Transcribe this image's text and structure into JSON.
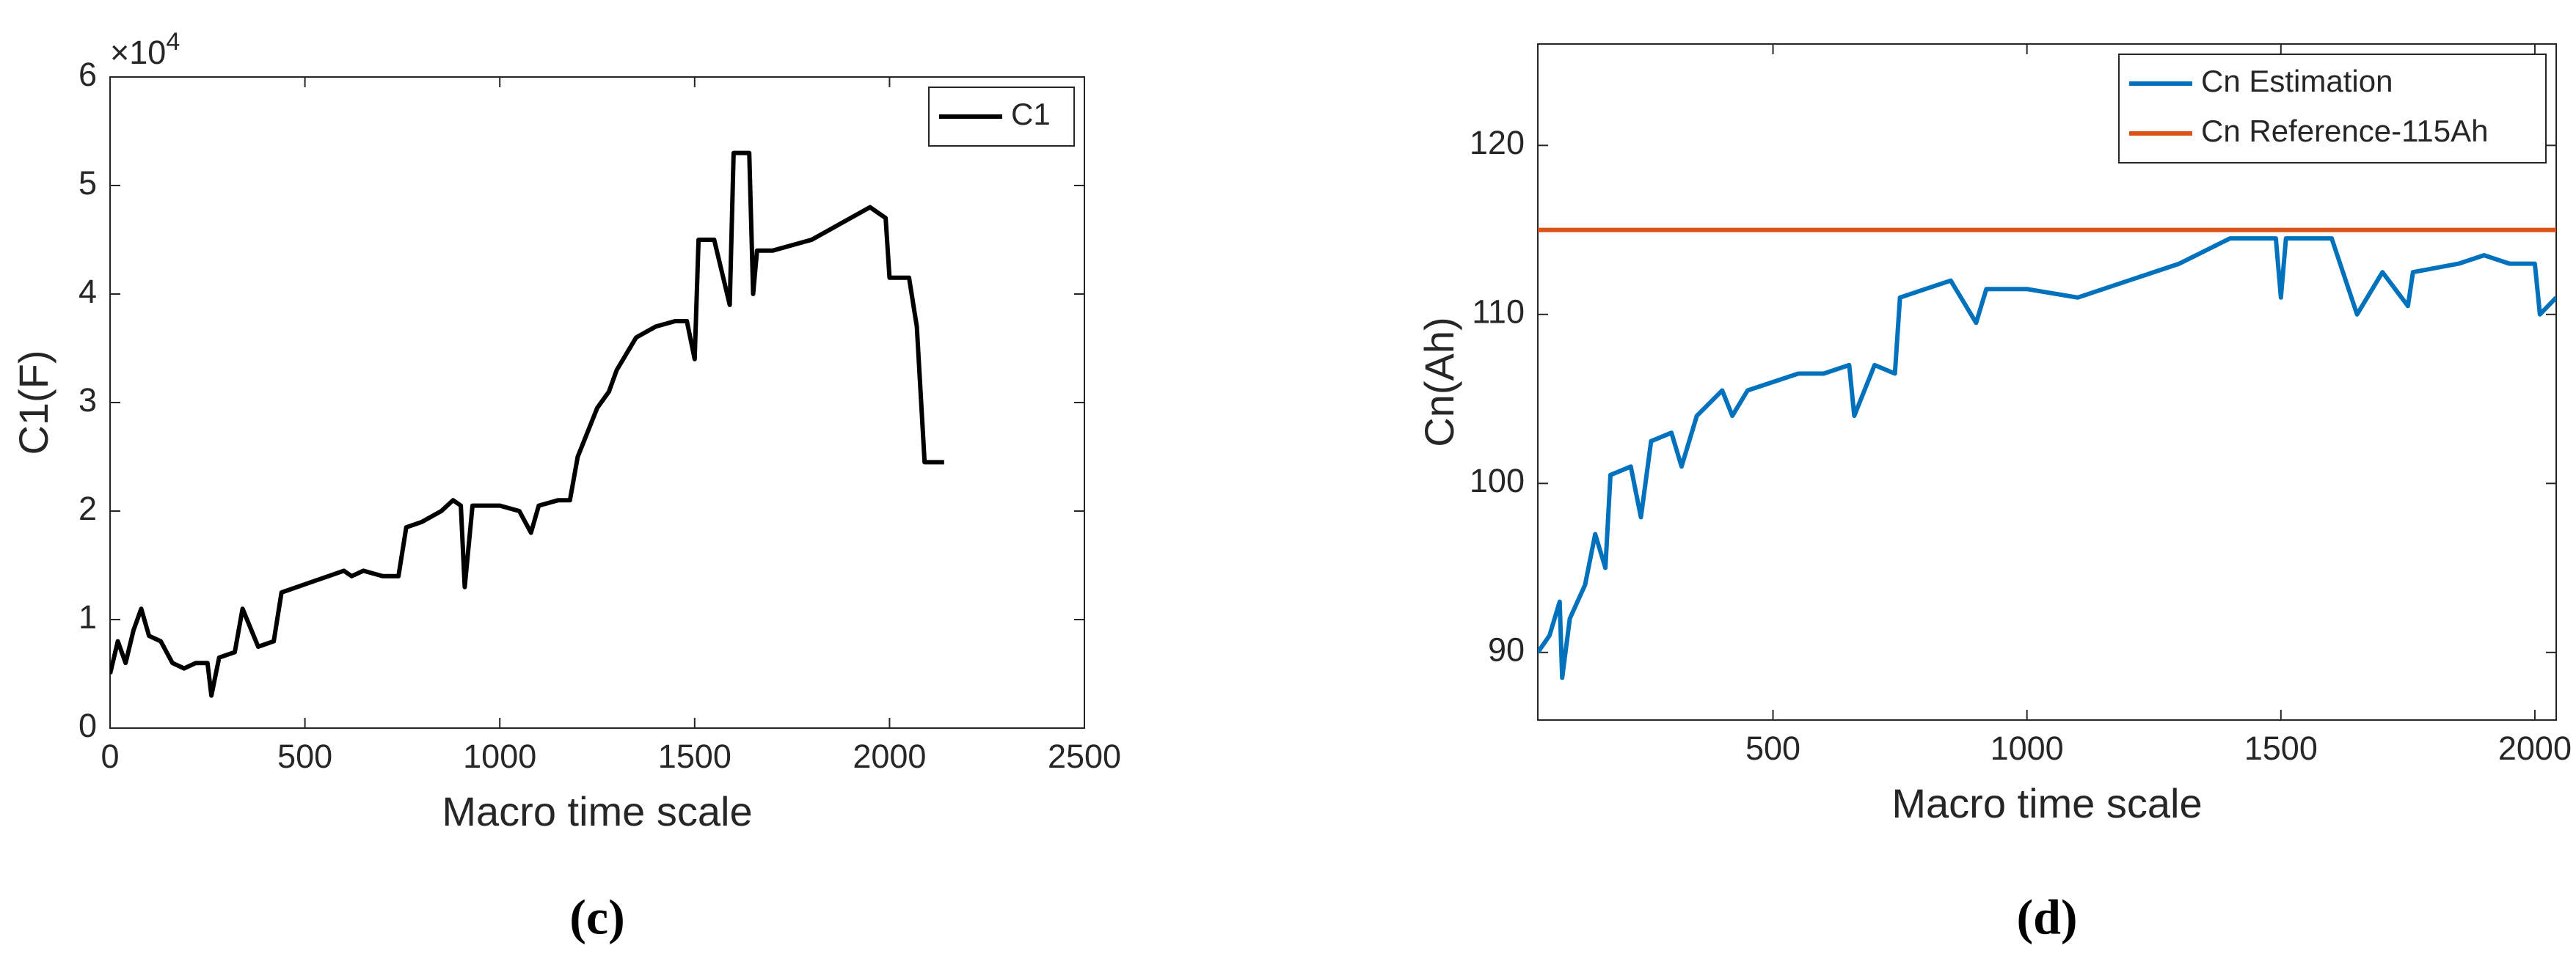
{
  "chart_data": [
    {
      "type": "line",
      "y_multiplier": "×10",
      "y_multiplier_exponent": "4",
      "xlabel": "Macro time scale",
      "ylabel": "C1(F)",
      "panel_label": "(c)",
      "xlim": [
        0,
        2500
      ],
      "ylim": [
        0,
        6
      ],
      "xticks": [
        0,
        500,
        1000,
        1500,
        2000,
        2500
      ],
      "yticks": [
        0,
        1,
        2,
        3,
        4,
        5,
        6
      ],
      "legend": "upper right",
      "series": [
        {
          "name": "C1",
          "color": "#000000",
          "x": [
            0,
            20,
            40,
            60,
            80,
            100,
            130,
            160,
            190,
            220,
            250,
            260,
            280,
            320,
            340,
            380,
            420,
            440,
            480,
            520,
            560,
            600,
            620,
            650,
            700,
            740,
            760,
            800,
            850,
            880,
            900,
            910,
            930,
            980,
            1000,
            1050,
            1080,
            1100,
            1150,
            1180,
            1200,
            1250,
            1280,
            1300,
            1350,
            1400,
            1450,
            1480,
            1500,
            1510,
            1550,
            1590,
            1600,
            1640,
            1650,
            1660,
            1700,
            1750,
            1800,
            1850,
            1900,
            1950,
            1990,
            2000,
            2050,
            2070,
            2090,
            2100,
            2140
          ],
          "values": [
            0.5,
            0.8,
            0.6,
            0.9,
            1.1,
            0.85,
            0.8,
            0.6,
            0.55,
            0.6,
            0.6,
            0.3,
            0.65,
            0.7,
            1.1,
            0.75,
            0.8,
            1.25,
            1.3,
            1.35,
            1.4,
            1.45,
            1.4,
            1.45,
            1.4,
            1.4,
            1.85,
            1.9,
            2.0,
            2.1,
            2.05,
            1.3,
            2.05,
            2.05,
            2.05,
            2.0,
            1.8,
            2.05,
            2.1,
            2.1,
            2.5,
            2.95,
            3.1,
            3.3,
            3.6,
            3.7,
            3.75,
            3.75,
            3.4,
            4.5,
            4.5,
            3.9,
            5.3,
            5.3,
            4.0,
            4.4,
            4.4,
            4.45,
            4.5,
            4.6,
            4.7,
            4.8,
            4.7,
            4.15,
            4.15,
            3.7,
            2.45,
            2.45,
            2.45
          ]
        }
      ]
    },
    {
      "type": "line",
      "xlabel": "Macro time scale",
      "ylabel": "Cn(Ah)",
      "panel_label": "(d)",
      "xlim": [
        37,
        2042
      ],
      "ylim": [
        86,
        126
      ],
      "xticks": [
        500,
        1000,
        1500,
        2000
      ],
      "yticks": [
        90,
        100,
        110,
        120
      ],
      "legend": "upper right",
      "series": [
        {
          "name": "Cn Estimation",
          "color": "#0072bd",
          "x": [
            37,
            60,
            80,
            85,
            100,
            130,
            150,
            170,
            180,
            220,
            240,
            260,
            300,
            320,
            350,
            400,
            420,
            450,
            500,
            550,
            600,
            650,
            660,
            700,
            740,
            750,
            800,
            850,
            900,
            920,
            1000,
            1100,
            1200,
            1300,
            1400,
            1490,
            1500,
            1510,
            1550,
            1600,
            1650,
            1700,
            1750,
            1760,
            1850,
            1900,
            1950,
            2000,
            2010,
            2042
          ],
          "values": [
            90,
            91,
            93,
            88.5,
            92,
            94,
            97,
            95,
            100.5,
            101,
            98,
            102.5,
            103,
            101,
            104,
            105.5,
            104,
            105.5,
            106,
            106.5,
            106.5,
            107,
            104,
            107,
            106.5,
            111,
            111.5,
            112,
            109.5,
            111.5,
            111.5,
            111,
            112,
            113,
            114.5,
            114.5,
            111,
            114.5,
            114.5,
            114.5,
            110,
            112.5,
            110.5,
            112.5,
            113,
            113.5,
            113,
            113,
            110,
            111
          ]
        },
        {
          "name": "Cn Reference-115Ah",
          "color": "#d95319",
          "x": [
            37,
            2042
          ],
          "values": [
            115,
            115
          ]
        }
      ]
    }
  ]
}
